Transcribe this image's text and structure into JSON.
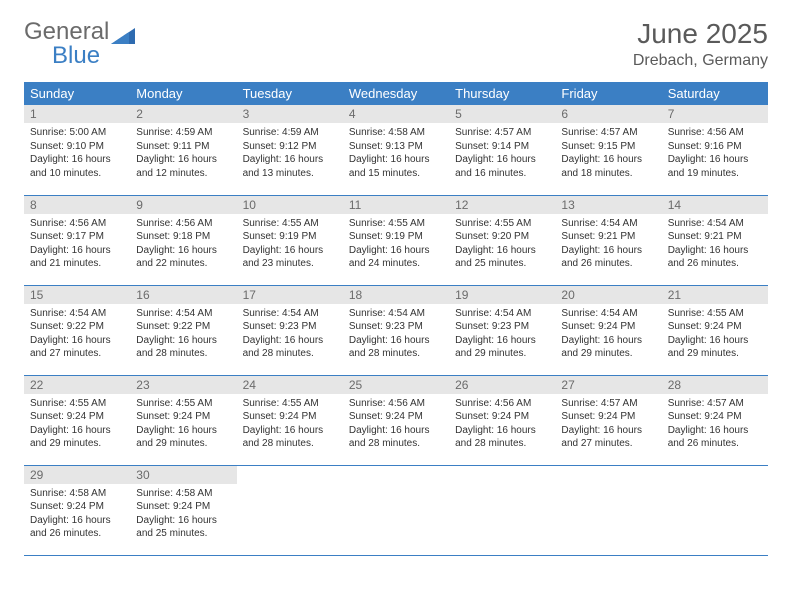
{
  "logo": {
    "text1": "General",
    "text2": "Blue"
  },
  "header": {
    "month": "June 2025",
    "location": "Drebach, Germany"
  },
  "colors": {
    "accent": "#3b7fc4",
    "dayhead_bg": "#e6e6e6",
    "text": "#333333",
    "label": "#5a5a5a"
  },
  "days_of_week": [
    "Sunday",
    "Monday",
    "Tuesday",
    "Wednesday",
    "Thursday",
    "Friday",
    "Saturday"
  ],
  "weeks": [
    [
      {
        "n": "1",
        "sr": "5:00 AM",
        "ss": "9:10 PM",
        "dl": "16 hours and 10 minutes."
      },
      {
        "n": "2",
        "sr": "4:59 AM",
        "ss": "9:11 PM",
        "dl": "16 hours and 12 minutes."
      },
      {
        "n": "3",
        "sr": "4:59 AM",
        "ss": "9:12 PM",
        "dl": "16 hours and 13 minutes."
      },
      {
        "n": "4",
        "sr": "4:58 AM",
        "ss": "9:13 PM",
        "dl": "16 hours and 15 minutes."
      },
      {
        "n": "5",
        "sr": "4:57 AM",
        "ss": "9:14 PM",
        "dl": "16 hours and 16 minutes."
      },
      {
        "n": "6",
        "sr": "4:57 AM",
        "ss": "9:15 PM",
        "dl": "16 hours and 18 minutes."
      },
      {
        "n": "7",
        "sr": "4:56 AM",
        "ss": "9:16 PM",
        "dl": "16 hours and 19 minutes."
      }
    ],
    [
      {
        "n": "8",
        "sr": "4:56 AM",
        "ss": "9:17 PM",
        "dl": "16 hours and 21 minutes."
      },
      {
        "n": "9",
        "sr": "4:56 AM",
        "ss": "9:18 PM",
        "dl": "16 hours and 22 minutes."
      },
      {
        "n": "10",
        "sr": "4:55 AM",
        "ss": "9:19 PM",
        "dl": "16 hours and 23 minutes."
      },
      {
        "n": "11",
        "sr": "4:55 AM",
        "ss": "9:19 PM",
        "dl": "16 hours and 24 minutes."
      },
      {
        "n": "12",
        "sr": "4:55 AM",
        "ss": "9:20 PM",
        "dl": "16 hours and 25 minutes."
      },
      {
        "n": "13",
        "sr": "4:54 AM",
        "ss": "9:21 PM",
        "dl": "16 hours and 26 minutes."
      },
      {
        "n": "14",
        "sr": "4:54 AM",
        "ss": "9:21 PM",
        "dl": "16 hours and 26 minutes."
      }
    ],
    [
      {
        "n": "15",
        "sr": "4:54 AM",
        "ss": "9:22 PM",
        "dl": "16 hours and 27 minutes."
      },
      {
        "n": "16",
        "sr": "4:54 AM",
        "ss": "9:22 PM",
        "dl": "16 hours and 28 minutes."
      },
      {
        "n": "17",
        "sr": "4:54 AM",
        "ss": "9:23 PM",
        "dl": "16 hours and 28 minutes."
      },
      {
        "n": "18",
        "sr": "4:54 AM",
        "ss": "9:23 PM",
        "dl": "16 hours and 28 minutes."
      },
      {
        "n": "19",
        "sr": "4:54 AM",
        "ss": "9:23 PM",
        "dl": "16 hours and 29 minutes."
      },
      {
        "n": "20",
        "sr": "4:54 AM",
        "ss": "9:24 PM",
        "dl": "16 hours and 29 minutes."
      },
      {
        "n": "21",
        "sr": "4:55 AM",
        "ss": "9:24 PM",
        "dl": "16 hours and 29 minutes."
      }
    ],
    [
      {
        "n": "22",
        "sr": "4:55 AM",
        "ss": "9:24 PM",
        "dl": "16 hours and 29 minutes."
      },
      {
        "n": "23",
        "sr": "4:55 AM",
        "ss": "9:24 PM",
        "dl": "16 hours and 29 minutes."
      },
      {
        "n": "24",
        "sr": "4:55 AM",
        "ss": "9:24 PM",
        "dl": "16 hours and 28 minutes."
      },
      {
        "n": "25",
        "sr": "4:56 AM",
        "ss": "9:24 PM",
        "dl": "16 hours and 28 minutes."
      },
      {
        "n": "26",
        "sr": "4:56 AM",
        "ss": "9:24 PM",
        "dl": "16 hours and 28 minutes."
      },
      {
        "n": "27",
        "sr": "4:57 AM",
        "ss": "9:24 PM",
        "dl": "16 hours and 27 minutes."
      },
      {
        "n": "28",
        "sr": "4:57 AM",
        "ss": "9:24 PM",
        "dl": "16 hours and 26 minutes."
      }
    ],
    [
      {
        "n": "29",
        "sr": "4:58 AM",
        "ss": "9:24 PM",
        "dl": "16 hours and 26 minutes."
      },
      {
        "n": "30",
        "sr": "4:58 AM",
        "ss": "9:24 PM",
        "dl": "16 hours and 25 minutes."
      },
      null,
      null,
      null,
      null,
      null
    ]
  ],
  "labels": {
    "sunrise": "Sunrise:",
    "sunset": "Sunset:",
    "daylight": "Daylight:"
  }
}
